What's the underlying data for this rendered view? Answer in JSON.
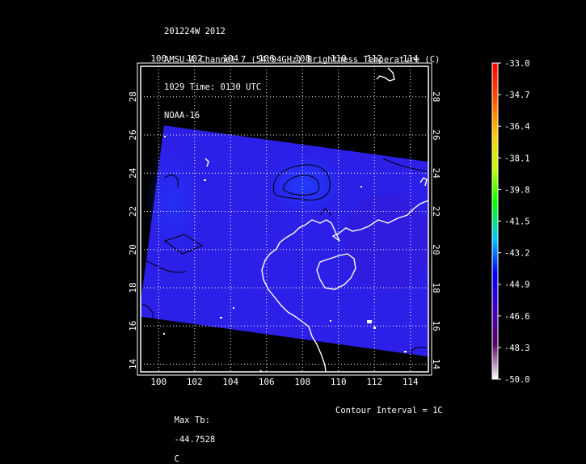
{
  "header": {
    "line1": "201224W 2012",
    "line2": "AMSU-A Channel 7 (54.94GHz) Brightness Temperature (C)",
    "line3": "1029 Time: 0130 UTC",
    "line4": "NOAA-16"
  },
  "footer": {
    "max_label": "Max Tb:",
    "max_value": "-44.7528",
    "max_unit": "C",
    "contour_text": "Contour Interval = 1C"
  },
  "chart_data": {
    "type": "heatmap",
    "title": "AMSU-A Channel 7 (54.94GHz) Brightness Temperature (C)",
    "x_ticks": [
      100,
      102,
      104,
      106,
      108,
      110,
      112,
      114
    ],
    "y_ticks": [
      14,
      16,
      18,
      20,
      22,
      24,
      26,
      28
    ],
    "xlim": [
      99.0,
      115.0
    ],
    "ylim": [
      13.6,
      29.6
    ],
    "grid": true,
    "swath_corners_lonlat": [
      [
        100.3,
        26.5
      ],
      [
        115.0,
        24.6
      ],
      [
        115.0,
        14.4
      ],
      [
        98.9,
        16.5
      ]
    ],
    "colorbar": {
      "ticks": [
        "-33.0",
        "-34.7",
        "-36.4",
        "-38.1",
        "-39.8",
        "-41.5",
        "-43.2",
        "-44.9",
        "-46.6",
        "-48.3",
        "-50.0"
      ],
      "min": -50.0,
      "max": -33.0,
      "colors": [
        "#ffffff",
        "#5a0064",
        "#4400c8",
        "#0000ff",
        "#00c8ff",
        "#00ff00",
        "#c8ff00",
        "#ffc800",
        "#ff5000",
        "#ff0000"
      ]
    },
    "field_colors": {
      "main": "#2c1fe8",
      "warm": "#1f40ff",
      "cool": "#3a17cc"
    },
    "contour_color": "#000000",
    "coast_color": "#ffffff"
  }
}
